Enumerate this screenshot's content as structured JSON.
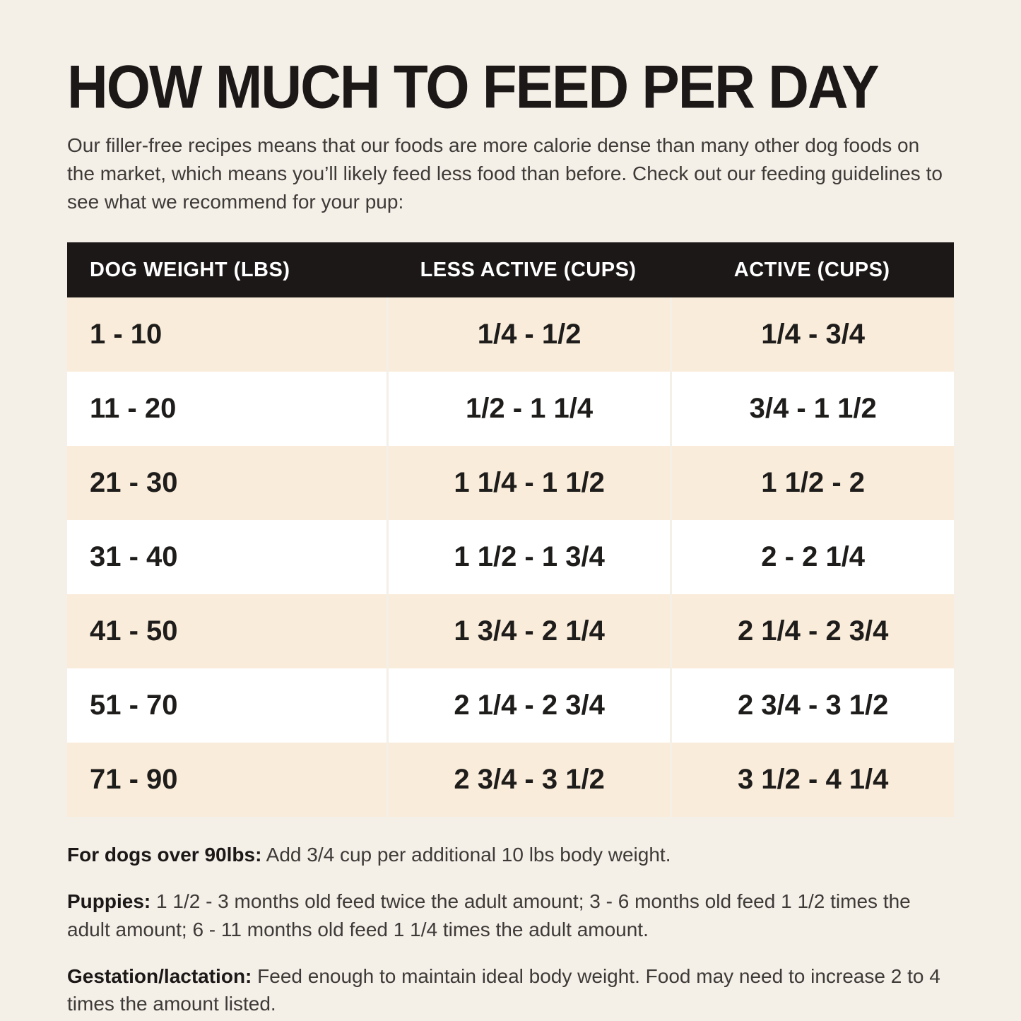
{
  "page": {
    "title": "HOW MUCH TO FEED PER DAY",
    "intro": "Our filler-free recipes means that our foods are more calorie dense than many other dog foods on the market, which means you’ll likely feed less food than before. Check out our feeding guidelines to see what we recommend for your pup:"
  },
  "table": {
    "headers": [
      "DOG WEIGHT (LBS)",
      "LESS ACTIVE (CUPS)",
      "ACTIVE (CUPS)"
    ],
    "rows": [
      [
        "1 - 10",
        "1/4 - 1/2",
        "1/4 - 3/4"
      ],
      [
        "11 - 20",
        "1/2 - 1 1/4",
        "3/4 - 1 1/2"
      ],
      [
        "21 - 30",
        "1 1/4 - 1 1/2",
        "1 1/2 - 2"
      ],
      [
        "31 - 40",
        "1 1/2 - 1 3/4",
        "2 - 2 1/4"
      ],
      [
        "41 - 50",
        "1 3/4 - 2 1/4",
        "2 1/4 - 2 3/4"
      ],
      [
        "51 - 70",
        "2 1/4 - 2 3/4",
        "2 3/4 - 3 1/2"
      ],
      [
        "71 - 90",
        "2 3/4 - 3 1/2",
        "3 1/2 - 4 1/4"
      ]
    ]
  },
  "footnotes": [
    {
      "label": "For dogs over 90lbs:",
      "text": " Add 3/4 cup per additional 10 lbs body weight."
    },
    {
      "label": "Puppies:",
      "text": " 1 1/2 - 3 months old feed twice the adult amount; 3 - 6 months old feed 1 1/2 times the adult amount; 6 - 11 months old feed 1 1/4 times the adult amount."
    },
    {
      "label": "Gestation/lactation:",
      "text": " Feed enough to maintain ideal body weight. Food may need to increase 2 to 4 times the amount listed."
    }
  ],
  "colors": {
    "background": "#f4efe7",
    "header_bg": "#1b1817",
    "header_text": "#ffffff",
    "row_alt_bg": "#f9ecda",
    "row_bg": "#ffffff",
    "text": "#231f20"
  }
}
